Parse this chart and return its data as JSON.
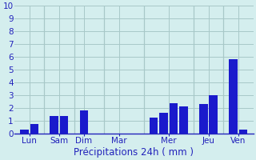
{
  "bars": [
    {
      "x": 1,
      "height": 0.3
    },
    {
      "x": 2,
      "height": 0.7
    },
    {
      "x": 4,
      "height": 1.35
    },
    {
      "x": 5,
      "height": 1.35
    },
    {
      "x": 7,
      "height": 1.8
    },
    {
      "x": 14,
      "height": 1.2
    },
    {
      "x": 15,
      "height": 1.6
    },
    {
      "x": 16,
      "height": 2.35
    },
    {
      "x": 17,
      "height": 2.1
    },
    {
      "x": 19,
      "height": 2.3
    },
    {
      "x": 20,
      "height": 3.0
    },
    {
      "x": 22,
      "height": 5.8
    },
    {
      "x": 23,
      "height": 0.3
    }
  ],
  "bar_color": "#1a1acc",
  "bar_width": 0.85,
  "xlabel": "Précipitations 24h ( mm )",
  "ylim": [
    0,
    10
  ],
  "yticks": [
    0,
    1,
    2,
    3,
    4,
    5,
    6,
    7,
    8,
    9,
    10
  ],
  "xlim": [
    0,
    24
  ],
  "day_labels": [
    "Lun",
    "Sam",
    "Dim",
    "Mar",
    "Mer",
    "Jeu",
    "Ven"
  ],
  "day_tick_x": [
    1.5,
    4.5,
    7.0,
    10.5,
    15.5,
    19.5,
    22.5
  ],
  "day_dividers": [
    3.0,
    6.0,
    9.0,
    13.0,
    18.0,
    21.0
  ],
  "bg_color": "#d4eeee",
  "grid_color": "#a8c8c8",
  "label_color": "#2222bb",
  "font_size_ticks": 7.5,
  "font_size_xlabel": 8.5
}
